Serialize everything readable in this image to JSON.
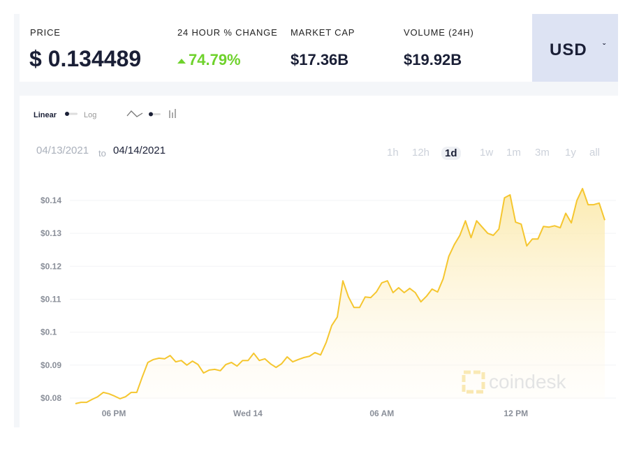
{
  "header": {
    "stats": [
      {
        "label": "PRICE",
        "value": "$ 0.134489"
      },
      {
        "label": "24 HOUR % CHANGE",
        "value": "74.79%"
      },
      {
        "label": "MARKET CAP",
        "value": "$17.36B"
      },
      {
        "label": "VOLUME (24H)",
        "value": "$19.92B"
      }
    ],
    "currency": "USD"
  },
  "controls": {
    "scale": [
      "Linear",
      "Log"
    ],
    "date_from": "04/13/2021",
    "date_sep": "to",
    "date_to": "04/14/2021",
    "ranges": [
      "1h",
      "12h",
      "1d",
      "1w",
      "1m",
      "3m",
      "1y",
      "all"
    ],
    "selected_range": "1d"
  },
  "chart_data": {
    "type": "line",
    "watermark": "coindesk",
    "color": "#f5c62f",
    "grid": true,
    "values": [
      0.0783,
      0.0787,
      0.0787,
      0.0796,
      0.0804,
      0.0817,
      0.0813,
      0.0806,
      0.0798,
      0.0804,
      0.0817,
      0.0817,
      0.0864,
      0.0908,
      0.0917,
      0.0921,
      0.0919,
      0.0929,
      0.091,
      0.0914,
      0.09,
      0.0912,
      0.0902,
      0.0876,
      0.0885,
      0.0887,
      0.0883,
      0.0902,
      0.0908,
      0.0897,
      0.0914,
      0.0914,
      0.0936,
      0.0914,
      0.0919,
      0.0904,
      0.0893,
      0.0904,
      0.0925,
      0.091,
      0.0917,
      0.0923,
      0.0927,
      0.0938,
      0.0931,
      0.0969,
      0.102,
      0.1046,
      0.1156,
      0.1107,
      0.1075,
      0.1075,
      0.1107,
      0.1105,
      0.1122,
      0.115,
      0.1156,
      0.112,
      0.1135,
      0.112,
      0.1133,
      0.112,
      0.1092,
      0.1109,
      0.1131,
      0.1122,
      0.1162,
      0.123,
      0.1266,
      0.1294,
      0.1338,
      0.1287,
      0.1338,
      0.1319,
      0.13,
      0.1294,
      0.1313,
      0.1408,
      0.1417,
      0.1334,
      0.1328,
      0.1262,
      0.1283,
      0.1283,
      0.1321,
      0.1319,
      0.1323,
      0.1317,
      0.1361,
      0.1332,
      0.14,
      0.1436,
      0.1387,
      0.1387,
      0.1392,
      0.134
    ],
    "xlim": [
      0,
      95
    ],
    "xticks": [
      {
        "value": 6.9,
        "label": "06 PM"
      },
      {
        "value": 30.95,
        "label": "Wed 14"
      },
      {
        "value": 55,
        "label": "06 AM"
      },
      {
        "value": 79.05,
        "label": "12 PM"
      }
    ],
    "ylim": [
      0.078,
      0.145
    ],
    "yticks": [
      {
        "value": 0.08,
        "label": "$0.08"
      },
      {
        "value": 0.09,
        "label": "$0.09"
      },
      {
        "value": 0.1,
        "label": "$0.1"
      },
      {
        "value": 0.11,
        "label": "$0.11"
      },
      {
        "value": 0.12,
        "label": "$0.12"
      },
      {
        "value": 0.13,
        "label": "$0.13"
      },
      {
        "value": 0.14,
        "label": "$0.14"
      }
    ]
  }
}
